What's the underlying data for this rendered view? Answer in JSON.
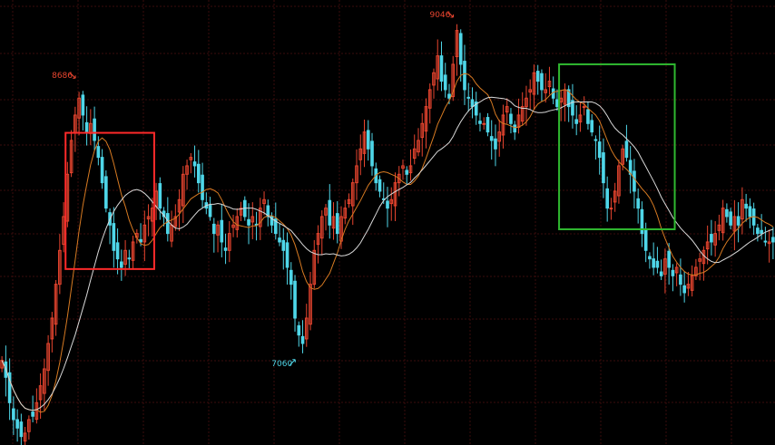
{
  "chart_data": {
    "type": "candlestick",
    "title": "",
    "grid": true,
    "background": "#000000",
    "colors": {
      "up": "#e8452f",
      "down": "#4fd6e8",
      "grid": "#3a0b0b",
      "ma_short": "#d77a22",
      "ma_long": "#d8d8d8",
      "highlight_red": "#ff2a2a",
      "highlight_green": "#2fb830"
    },
    "ylim": [
      6550,
      9180
    ],
    "annotations": [
      {
        "id": "high1",
        "text": "8686",
        "value": 8686,
        "index": 20,
        "color": "#e8452f"
      },
      {
        "id": "low1",
        "text": "7060",
        "value": 7060,
        "index": 77,
        "color": "#4fd6e8"
      },
      {
        "id": "high2",
        "text": "9046",
        "value": 9046,
        "index": 118,
        "color": "#e8452f"
      }
    ],
    "highlights": [
      {
        "name": "red-box",
        "start_index": 17,
        "end_index": 39,
        "y_top": 8395,
        "y_bottom": 7590,
        "color": "#ff2a2a"
      },
      {
        "name": "green-box",
        "start_index": 145,
        "end_index": 174,
        "y_top": 8800,
        "y_bottom": 7825,
        "color": "#2fb830"
      }
    ],
    "series": [
      {
        "values": [
          7050,
          6950,
          6800,
          6700,
          6650,
          6600,
          6620,
          6700,
          6720,
          6800,
          6900,
          7000,
          7150,
          7300,
          7500,
          7700,
          7900,
          8150,
          8350,
          8500,
          8600,
          8500,
          8400,
          8450,
          8350,
          8250,
          8100,
          7950,
          7850,
          7700,
          7650,
          7600,
          7700,
          7650,
          7750,
          7800,
          7750,
          7850,
          7900,
          7950,
          8050,
          7950,
          7900,
          7800,
          7850,
          7900,
          8000,
          8150,
          8200,
          8250,
          8200,
          8100,
          8000,
          7950,
          7900,
          7800,
          7850,
          7750,
          7700,
          7800,
          7850,
          7900,
          7950,
          7900,
          7850,
          7900,
          7850,
          7950,
          8000,
          7900,
          7850,
          7800,
          7750,
          7700,
          7600,
          7500,
          7300,
          7200,
          7150,
          7300,
          7500,
          7700,
          7800,
          7900,
          7950,
          7850,
          7900,
          7800,
          7900,
          7950,
          8000,
          8100,
          8200,
          8300,
          8400,
          8300,
          8200,
          8100,
          8050,
          8000,
          7950,
          8000,
          8100,
          8150,
          8200,
          8150,
          8200,
          8300,
          8350,
          8450,
          8550,
          8650,
          8750,
          8850,
          8700,
          8650,
          8600,
          8800,
          9000,
          8800,
          8650,
          8600,
          8550,
          8500,
          8450,
          8450,
          8400,
          8350,
          8300,
          8400,
          8500,
          8550,
          8450,
          8400,
          8500,
          8550,
          8600,
          8650,
          8750,
          8700,
          8650,
          8650,
          8700,
          8600,
          8550,
          8600,
          8650,
          8550,
          8500,
          8450,
          8500,
          8550,
          8450,
          8400,
          8350,
          8250,
          8100,
          7950,
          7950,
          8050,
          8200,
          8300,
          8250,
          8150,
          8050,
          7950,
          7800,
          7700,
          7650,
          7600,
          7600,
          7550,
          7650,
          7600,
          7550,
          7600,
          7500,
          7450,
          7500,
          7550,
          7600,
          7650,
          7700,
          7750,
          7750,
          7800,
          7850,
          7950,
          7900,
          7850,
          7900,
          7850,
          8000,
          7950,
          7900,
          7850,
          7800,
          7800,
          7750,
          7750,
          7750
        ]
      },
      {
        "name": "",
        "type": "line",
        "color": "#d77a22"
      },
      {
        "name": "",
        "type": "line",
        "color": "#d8d8d8"
      }
    ]
  }
}
